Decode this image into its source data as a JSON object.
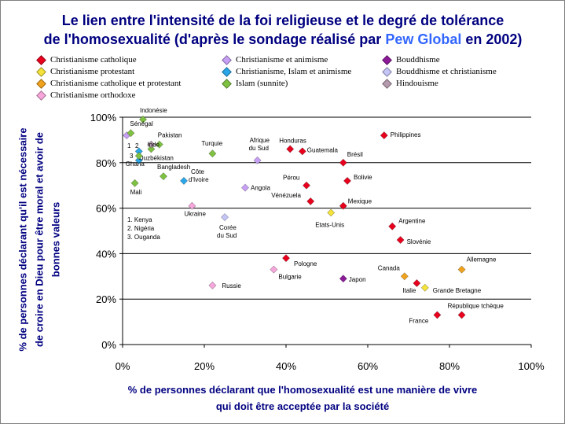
{
  "title": {
    "line1": "Le lien entre l'intensité de la foi religieuse et le degré de tolérance",
    "line2_a": "de l'homosexualité",
    "line2_b": " (d'après le sondage réalisé par ",
    "line2_c": "Pew Global",
    "line2_d": " en 2002)"
  },
  "colors": {
    "title": "#000080",
    "accent": "#3366ff",
    "grid": "#000000"
  },
  "legend": [
    {
      "name": "Christianisme catholique",
      "color": "#e8001c"
    },
    {
      "name": "Christianisme protestant",
      "color": "#f4e23a"
    },
    {
      "name": "Christianisme catholique et protestant",
      "color": "#f0a21c"
    },
    {
      "name": "Christianisme orthodoxe",
      "color": "#f7a6dc"
    },
    {
      "name": "Christianisme et animisme",
      "color": "#c7a0f5"
    },
    {
      "name": "Christianisme, Islam et animisme",
      "color": "#29a7e8"
    },
    {
      "name": "Islam (sunnite)",
      "color": "#7fc241"
    },
    {
      "name": "Bouddhisme",
      "color": "#8c1a99"
    },
    {
      "name": "Bouddhisme et christianisme",
      "color": "#c4c4f7"
    },
    {
      "name": "Hindouisme",
      "color": "#b49aac"
    }
  ],
  "notes": {
    "left_group": "1. Kenya\n2. Nigéria\n3. Ouganda",
    "marker1": "1",
    "marker2": "2",
    "marker3": "3"
  },
  "chart_data": {
    "type": "scatter",
    "title": "Le lien entre l'intensité de la foi religieuse et le degré de tolérance de l'homosexualité (d'après le sondage réalisé par Pew Global en 2002)",
    "xlabel": "% de personnes déclarant que l'homosexualité est une manière de vivre qui doit être acceptée par la société",
    "ylabel": "% de personnes déclarant qu'il est nécessaire de croire en Dieu pour être moral et avoir de bonnes valeurs",
    "xlim": [
      0,
      100
    ],
    "ylim": [
      0,
      100
    ],
    "x_ticks": [
      "0%",
      "20%",
      "40%",
      "60%",
      "80%",
      "100%"
    ],
    "y_ticks": [
      "0%",
      "20%",
      "40%",
      "60%",
      "80%",
      "100%"
    ],
    "grid": "horizontal",
    "points": [
      {
        "label": "Philippines",
        "x": 64,
        "y": 92,
        "group": 0
      },
      {
        "label": "Honduras",
        "x": 41,
        "y": 86,
        "group": 0
      },
      {
        "label": "Guatemala",
        "x": 44,
        "y": 85,
        "group": 0
      },
      {
        "label": "Brésil",
        "x": 54,
        "y": 80,
        "group": 0
      },
      {
        "label": "Pérou",
        "x": 45,
        "y": 70,
        "group": 0
      },
      {
        "label": "Bolivie",
        "x": 55,
        "y": 72,
        "group": 0
      },
      {
        "label": "Vénézuela",
        "x": 46,
        "y": 63,
        "group": 0
      },
      {
        "label": "Mexique",
        "x": 54,
        "y": 61,
        "group": 0
      },
      {
        "label": "Argentine",
        "x": 66,
        "y": 52,
        "group": 0
      },
      {
        "label": "Slovénie",
        "x": 68,
        "y": 46,
        "group": 0
      },
      {
        "label": "Pologne",
        "x": 40,
        "y": 38,
        "group": 0
      },
      {
        "label": "Italie",
        "x": 72,
        "y": 27,
        "group": 0
      },
      {
        "label": "France",
        "x": 77,
        "y": 13,
        "group": 0
      },
      {
        "label": "République tchèque",
        "x": 83,
        "y": 13,
        "group": 0
      },
      {
        "label": "Etats-Unis",
        "x": 51,
        "y": 58,
        "group": 1
      },
      {
        "label": "Grande Bretagne",
        "x": 74,
        "y": 25,
        "group": 1
      },
      {
        "label": "Allemagne",
        "x": 83,
        "y": 33,
        "group": 2
      },
      {
        "label": "Canada",
        "x": 69,
        "y": 30,
        "group": 2
      },
      {
        "label": "Ukraine",
        "x": 17,
        "y": 61,
        "group": 3
      },
      {
        "label": "Russie",
        "x": 22,
        "y": 26,
        "group": 3
      },
      {
        "label": "Bulgarie",
        "x": 37,
        "y": 33,
        "group": 3
      },
      {
        "label": "Afrique du Sud",
        "x": 33,
        "y": 81,
        "group": 4
      },
      {
        "label": "Angola",
        "x": 30,
        "y": 69,
        "group": 4
      },
      {
        "label": "Kenya",
        "x": 1,
        "y": 92,
        "group": 4
      },
      {
        "label": "Nigéria",
        "x": 4,
        "y": 85,
        "group": 5
      },
      {
        "label": "Ouganda",
        "x": 4,
        "y": 81,
        "group": 5
      },
      {
        "label": "Côte d'Ivoire",
        "x": 15,
        "y": 72,
        "group": 5
      },
      {
        "label": "Indonésie",
        "x": 5,
        "y": 99,
        "group": 6
      },
      {
        "label": "Sénégal",
        "x": 2,
        "y": 93,
        "group": 6
      },
      {
        "label": "Pakistan",
        "x": 9,
        "y": 88,
        "group": 6
      },
      {
        "label": "Ouzbékistan",
        "x": 7,
        "y": 86,
        "group": 6
      },
      {
        "label": "Turquie",
        "x": 22,
        "y": 84,
        "group": 6
      },
      {
        "label": "Bangladesh",
        "x": 10,
        "y": 74,
        "group": 6
      },
      {
        "label": "Mali",
        "x": 3,
        "y": 71,
        "group": 6
      },
      {
        "label": "Ghana",
        "x": 4,
        "y": 83,
        "group": 6
      },
      {
        "label": "Japon",
        "x": 54,
        "y": 29,
        "group": 7
      },
      {
        "label": "Corée du Sud",
        "x": 25,
        "y": 56,
        "group": 8
      },
      {
        "label": "Inde",
        "x": 7,
        "y": 88,
        "group": 9
      }
    ]
  }
}
